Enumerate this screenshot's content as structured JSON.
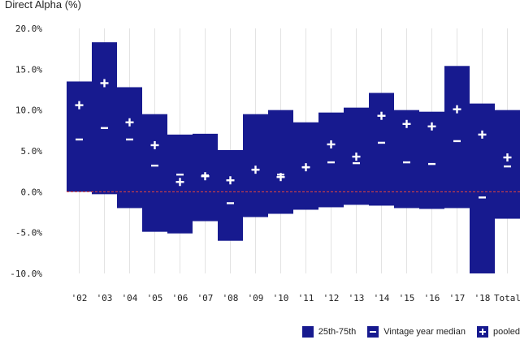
{
  "colors": {
    "box": "#171a8f",
    "marker": "#ffffff",
    "grid": "#e3e3e3",
    "zero_line": "#e8453c",
    "text": "#222222"
  },
  "legend": {
    "box_label": "25th-75th",
    "median_label": "Vintage year median",
    "pooled_label": "pooled"
  },
  "chart_data": {
    "type": "box-range",
    "title": "Direct Alpha (%)",
    "ylim": [
      -10,
      20
    ],
    "yticks": [
      20,
      15,
      10,
      5,
      0,
      -5,
      -10
    ],
    "ytick_labels": [
      "20.0%",
      "15.0%",
      "10.0%",
      "5.0%",
      "0.0%",
      "-5.0%",
      "-10.0%"
    ],
    "categories": [
      "'02",
      "'03",
      "'04",
      "'05",
      "'06",
      "'07",
      "'08",
      "'09",
      "'10",
      "'11",
      "'12",
      "'13",
      "'14",
      "'15",
      "'16",
      "'17",
      "'18",
      "Total"
    ],
    "series": [
      {
        "name": "25th-75th low",
        "values": [
          0.0,
          -0.3,
          -2.0,
          -4.9,
          -5.1,
          -3.6,
          -6.0,
          -3.1,
          -2.7,
          -2.2,
          -1.9,
          -1.6,
          -1.7,
          -2.0,
          -2.1,
          -2.0,
          -10.0,
          -3.3
        ]
      },
      {
        "name": "25th-75th high",
        "values": [
          13.5,
          18.3,
          12.8,
          9.5,
          7.0,
          7.1,
          5.1,
          9.5,
          10.0,
          8.5,
          9.7,
          10.3,
          12.1,
          10.0,
          9.8,
          15.4,
          10.8,
          10.0
        ]
      },
      {
        "name": "Vintage year median",
        "values": [
          6.4,
          7.8,
          6.4,
          3.2,
          2.1,
          2.0,
          -1.4,
          2.7,
          2.1,
          3.0,
          3.6,
          3.5,
          6.0,
          3.6,
          3.4,
          6.2,
          -0.7,
          3.1
        ]
      },
      {
        "name": "pooled",
        "values": [
          10.6,
          13.3,
          8.5,
          5.7,
          1.2,
          1.9,
          1.4,
          2.7,
          1.8,
          3.0,
          5.8,
          4.3,
          9.3,
          8.3,
          8.0,
          10.1,
          7.0,
          4.2
        ]
      }
    ]
  }
}
